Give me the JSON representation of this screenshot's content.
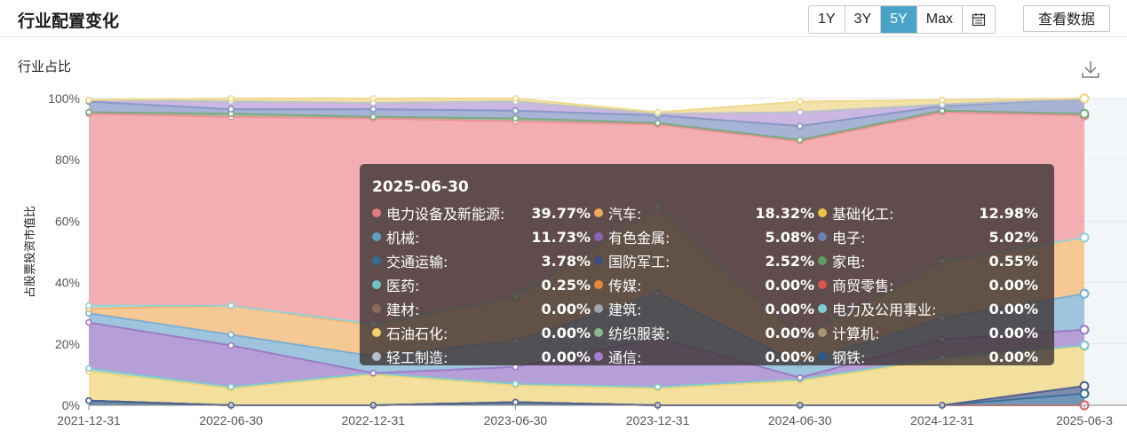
{
  "header": {
    "title": "行业配置变化",
    "range_buttons": [
      "1Y",
      "3Y",
      "5Y",
      "Max"
    ],
    "active_range": "5Y",
    "calendar_icon": "calendar-icon",
    "view_data_label": "查看数据"
  },
  "chart": {
    "subtitle": "行业占比",
    "download_icon": "download-icon"
  },
  "chart_data": {
    "type": "area",
    "stacked": true,
    "ylabel": "占股票投资市值比",
    "ylim": [
      0,
      100
    ],
    "y_ticks": [
      "0%",
      "20%",
      "40%",
      "60%",
      "80%",
      "100%"
    ],
    "x_labels": [
      "2021-12-31",
      "2022-06-30",
      "2022-12-31",
      "2023-06-30",
      "2023-12-31",
      "2024-06-30",
      "2024-12-31",
      "2025-06-3"
    ],
    "x": [
      "2021-12-31",
      "2022-06-30",
      "2022-12-31",
      "2023-06-30",
      "2023-12-31",
      "2024-06-30",
      "2024-12-31",
      "2025-06-30"
    ],
    "series": [
      {
        "name": "钢铁",
        "color": "#2f5f8a",
        "values": [
          1.5,
          0,
          0,
          1,
          0,
          0,
          0,
          0
        ]
      },
      {
        "name": "商贸零售",
        "color": "#e06a66",
        "values": [
          0,
          0,
          0,
          0,
          0,
          0,
          0,
          0
        ]
      },
      {
        "name": "交通运输",
        "color": "#3a6f9a",
        "values": [
          0,
          0,
          0,
          0,
          0,
          0,
          0,
          3.78
        ]
      },
      {
        "name": "国防军工",
        "color": "#4e5f8f",
        "values": [
          0,
          0,
          0,
          0,
          0,
          0,
          0,
          2.52
        ]
      },
      {
        "name": "基础化工",
        "color": "#f0d479",
        "values": [
          9.5,
          5.5,
          10,
          5.5,
          5.5,
          8,
          15,
          12.98
        ]
      },
      {
        "name": "医药",
        "color": "#7fc9cc",
        "values": [
          1,
          0.5,
          0.5,
          0.5,
          0.5,
          0.5,
          0.5,
          0.25
        ]
      },
      {
        "name": "有色金属",
        "color": "#9a78c6",
        "values": [
          15,
          13.5,
          0,
          5.5,
          16,
          0.5,
          6,
          5.08
        ]
      },
      {
        "name": "机械",
        "color": "#79afd0",
        "values": [
          3,
          3.5,
          5.5,
          8.5,
          14.5,
          4.5,
          7,
          11.73
        ]
      },
      {
        "name": "汽车",
        "color": "#f2b36a",
        "values": [
          1.5,
          9.5,
          10,
          14,
          27.5,
          8,
          18,
          18.32
        ]
      },
      {
        "name": "电力及公用事业",
        "color": "#8fd3d8",
        "values": [
          1,
          0,
          0.5,
          0.5,
          0.5,
          0.5,
          0.5,
          0
        ]
      },
      {
        "name": "电力设备及新能源",
        "color": "#ee8f93",
        "values": [
          62.5,
          61.5,
          67,
          57,
          27,
          64,
          48.5,
          39.77
        ]
      },
      {
        "name": "家电",
        "color": "#79a87c",
        "values": [
          0.5,
          1,
          0.5,
          1,
          0.5,
          0.5,
          0.5,
          0.55
        ]
      },
      {
        "name": "电子",
        "color": "#8596c4",
        "values": [
          3.5,
          1.5,
          2.5,
          2.5,
          2.5,
          4.5,
          1.5,
          5.02
        ]
      },
      {
        "name": "通信",
        "color": "#b99bd8",
        "values": [
          0.5,
          2.5,
          2,
          3,
          0.5,
          4.5,
          0.5,
          0
        ]
      },
      {
        "name": "计算机",
        "color": "#b5a58d",
        "values": [
          0,
          0,
          0,
          0,
          0,
          0,
          0,
          0
        ]
      },
      {
        "name": "建筑",
        "color": "#bfc6cc",
        "values": [
          0,
          0,
          0,
          0,
          0,
          0,
          0,
          0
        ]
      },
      {
        "name": "石油石化",
        "color": "#efd889",
        "values": [
          0,
          1,
          1.5,
          1,
          0.5,
          3.5,
          1.5,
          0
        ]
      }
    ]
  },
  "tooltip": {
    "date": "2025-06-30",
    "items": [
      {
        "name": "电力设备及新能源:",
        "value": "39.77%",
        "color": "#e07c7c"
      },
      {
        "name": "汽车:",
        "value": "18.32%",
        "color": "#f0a85a"
      },
      {
        "name": "基础化工:",
        "value": "12.98%",
        "color": "#e8c34a"
      },
      {
        "name": "机械:",
        "value": "11.73%",
        "color": "#5f9fc4"
      },
      {
        "name": "有色金属:",
        "value": "5.08%",
        "color": "#8a63b8"
      },
      {
        "name": "电子:",
        "value": "5.02%",
        "color": "#6c7fb4"
      },
      {
        "name": "交通运输:",
        "value": "3.78%",
        "color": "#336b96"
      },
      {
        "name": "国防军工:",
        "value": "2.52%",
        "color": "#3d4f85"
      },
      {
        "name": "家电:",
        "value": "0.55%",
        "color": "#5e9c63"
      },
      {
        "name": "医药:",
        "value": "0.25%",
        "color": "#6ec3c6"
      },
      {
        "name": "传媒:",
        "value": "0.00%",
        "color": "#e8883a"
      },
      {
        "name": "商贸零售:",
        "value": "0.00%",
        "color": "#d9534f"
      },
      {
        "name": "建材:",
        "value": "0.00%",
        "color": "#8c6d5a"
      },
      {
        "name": "建筑:",
        "value": "0.00%",
        "color": "#9fa8b0"
      },
      {
        "name": "电力及公用事业:",
        "value": "0.00%",
        "color": "#7fd0d4"
      },
      {
        "name": "石油石化:",
        "value": "0.00%",
        "color": "#f2d26a"
      },
      {
        "name": "纺织服装:",
        "value": "0.00%",
        "color": "#8fb88f"
      },
      {
        "name": "计算机:",
        "value": "0.00%",
        "color": "#a89474"
      },
      {
        "name": "轻工制造:",
        "value": "0.00%",
        "color": "#b8bec6"
      },
      {
        "name": "通信:",
        "value": "0.00%",
        "color": "#a47fd0"
      },
      {
        "name": "钢铁:",
        "value": "0.00%",
        "color": "#2a5a88"
      }
    ]
  }
}
